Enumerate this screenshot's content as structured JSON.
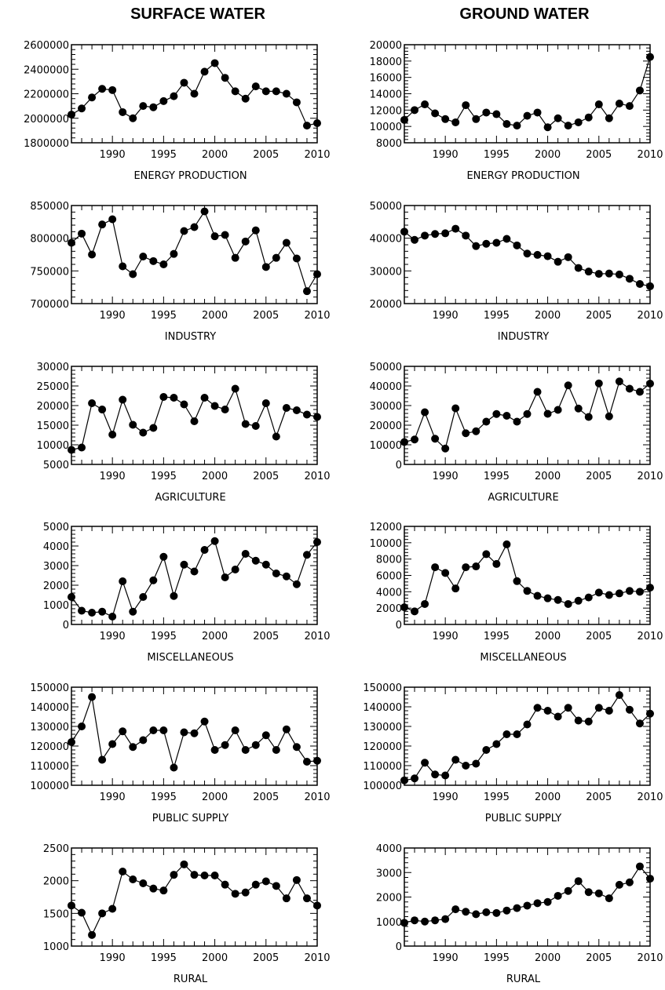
{
  "columns": [
    "SURFACE WATER",
    "GROUND WATER"
  ],
  "chart_data": [
    {
      "type": "line",
      "column": "SURFACE WATER",
      "xlabel": "ENERGY PRODUCTION",
      "xlim": [
        1986,
        2010
      ],
      "ylim": [
        1800000,
        2600000
      ],
      "yticks": [
        1800000,
        2000000,
        2200000,
        2400000,
        2600000
      ],
      "x": [
        1986,
        1987,
        1988,
        1989,
        1990,
        1991,
        1992,
        1993,
        1994,
        1995,
        1996,
        1997,
        1998,
        1999,
        2000,
        2001,
        2002,
        2003,
        2004,
        2005,
        2006,
        2007,
        2008,
        2009,
        2010
      ],
      "values": [
        2030000,
        2080000,
        2170000,
        2240000,
        2230000,
        2050000,
        2000000,
        2100000,
        2090000,
        2140000,
        2180000,
        2290000,
        2200000,
        2380000,
        2450000,
        2330000,
        2220000,
        2160000,
        2260000,
        2220000,
        2220000,
        2200000,
        2130000,
        1940000,
        1960000
      ]
    },
    {
      "type": "line",
      "column": "GROUND WATER",
      "xlabel": "ENERGY PRODUCTION",
      "xlim": [
        1986,
        2010
      ],
      "ylim": [
        8000,
        20000
      ],
      "yticks": [
        8000,
        10000,
        12000,
        14000,
        16000,
        18000,
        20000
      ],
      "x": [
        1986,
        1987,
        1988,
        1989,
        1990,
        1991,
        1992,
        1993,
        1994,
        1995,
        1996,
        1997,
        1998,
        1999,
        2000,
        2001,
        2002,
        2003,
        2004,
        2005,
        2006,
        2007,
        2008,
        2009,
        2010
      ],
      "values": [
        10800,
        12000,
        12700,
        11600,
        10900,
        10500,
        12600,
        10900,
        11700,
        11500,
        10300,
        10100,
        11300,
        11700,
        9900,
        11000,
        10100,
        10500,
        11100,
        12700,
        11000,
        12800,
        12500,
        14400,
        18500
      ]
    },
    {
      "type": "line",
      "column": "SURFACE WATER",
      "xlabel": "INDUSTRY",
      "xlim": [
        1986,
        2010
      ],
      "ylim": [
        700000,
        850000
      ],
      "yticks": [
        700000,
        750000,
        800000,
        850000
      ],
      "x": [
        1986,
        1987,
        1988,
        1989,
        1990,
        1991,
        1992,
        1993,
        1994,
        1995,
        1996,
        1997,
        1998,
        1999,
        2000,
        2001,
        2002,
        2003,
        2004,
        2005,
        2006,
        2007,
        2008,
        2009,
        2010
      ],
      "values": [
        793000,
        807000,
        775000,
        821000,
        829000,
        757000,
        745000,
        772000,
        765000,
        760000,
        776000,
        811000,
        817000,
        841000,
        803000,
        805000,
        770000,
        795000,
        812000,
        756000,
        770000,
        793000,
        769000,
        719000,
        745000
      ]
    },
    {
      "type": "line",
      "column": "GROUND WATER",
      "xlabel": "INDUSTRY",
      "xlim": [
        1986,
        2010
      ],
      "ylim": [
        20000,
        50000
      ],
      "yticks": [
        20000,
        30000,
        40000,
        50000
      ],
      "x": [
        1986,
        1987,
        1988,
        1989,
        1990,
        1991,
        1992,
        1993,
        1994,
        1995,
        1996,
        1997,
        1998,
        1999,
        2000,
        2001,
        2002,
        2003,
        2004,
        2005,
        2006,
        2007,
        2008,
        2009,
        2010
      ],
      "values": [
        42000,
        39500,
        40800,
        41300,
        41500,
        42900,
        40800,
        37600,
        38300,
        38600,
        39800,
        37800,
        35300,
        34900,
        34500,
        32800,
        34200,
        30900,
        29800,
        29100,
        29200,
        28900,
        27600,
        26000,
        25300
      ]
    },
    {
      "type": "line",
      "column": "SURFACE WATER",
      "xlabel": "AGRICULTURE",
      "xlim": [
        1986,
        2010
      ],
      "ylim": [
        5000,
        30000
      ],
      "yticks": [
        5000,
        10000,
        15000,
        20000,
        25000,
        30000
      ],
      "x": [
        1986,
        1987,
        1988,
        1989,
        1990,
        1991,
        1992,
        1993,
        1994,
        1995,
        1996,
        1997,
        1998,
        1999,
        2000,
        2001,
        2002,
        2003,
        2004,
        2005,
        2006,
        2007,
        2008,
        2009,
        2010
      ],
      "values": [
        8700,
        9300,
        20600,
        19000,
        12600,
        21500,
        15100,
        13100,
        14300,
        22200,
        22000,
        20300,
        16000,
        22000,
        19900,
        19000,
        24300,
        15300,
        14800,
        20600,
        12100,
        19400,
        18800,
        17700,
        17100
      ]
    },
    {
      "type": "line",
      "column": "GROUND WATER",
      "xlabel": "AGRICULTURE",
      "xlim": [
        1986,
        2010
      ],
      "ylim": [
        0,
        50000
      ],
      "yticks": [
        0,
        10000,
        20000,
        30000,
        40000,
        50000
      ],
      "x": [
        1986,
        1987,
        1988,
        1989,
        1990,
        1991,
        1992,
        1993,
        1994,
        1995,
        1996,
        1997,
        1998,
        1999,
        2000,
        2001,
        2002,
        2003,
        2004,
        2005,
        2006,
        2007,
        2008,
        2009,
        2010
      ],
      "values": [
        11400,
        12700,
        26600,
        13100,
        8100,
        28600,
        15900,
        16900,
        21800,
        25700,
        24800,
        21800,
        25700,
        37000,
        25800,
        27800,
        40300,
        28500,
        24200,
        41300,
        24500,
        42300,
        38600,
        37000,
        41200
      ]
    },
    {
      "type": "line",
      "column": "SURFACE WATER",
      "xlabel": "MISCELLANEOUS",
      "xlim": [
        1986,
        2010
      ],
      "ylim": [
        0,
        5000
      ],
      "yticks": [
        0,
        1000,
        2000,
        3000,
        4000,
        5000
      ],
      "x": [
        1986,
        1987,
        1988,
        1989,
        1990,
        1991,
        1992,
        1993,
        1994,
        1995,
        1996,
        1997,
        1998,
        1999,
        2000,
        2001,
        2002,
        2003,
        2004,
        2005,
        2006,
        2007,
        2008,
        2009,
        2010
      ],
      "values": [
        1400,
        700,
        600,
        650,
        400,
        2200,
        650,
        1400,
        2250,
        3450,
        1450,
        3050,
        2700,
        3800,
        4250,
        2400,
        2800,
        3600,
        3250,
        3050,
        2600,
        2450,
        2050,
        3550,
        4200
      ]
    },
    {
      "type": "line",
      "column": "GROUND WATER",
      "xlabel": "MISCELLANEOUS",
      "xlim": [
        1986,
        2010
      ],
      "ylim": [
        0,
        12000
      ],
      "yticks": [
        0,
        2000,
        4000,
        6000,
        8000,
        10000,
        12000
      ],
      "x": [
        1986,
        1987,
        1988,
        1989,
        1990,
        1991,
        1992,
        1993,
        1994,
        1995,
        1996,
        1997,
        1998,
        1999,
        2000,
        2001,
        2002,
        2003,
        2004,
        2005,
        2006,
        2007,
        2008,
        2009,
        2010
      ],
      "values": [
        2100,
        1600,
        2500,
        7000,
        6300,
        4400,
        7000,
        7100,
        8600,
        7400,
        9800,
        5300,
        4100,
        3500,
        3200,
        3000,
        2500,
        2900,
        3300,
        3900,
        3600,
        3800,
        4100,
        4000,
        4500
      ]
    },
    {
      "type": "line",
      "column": "SURFACE WATER",
      "xlabel": "PUBLIC SUPPLY",
      "xlim": [
        1986,
        2010
      ],
      "ylim": [
        100000,
        150000
      ],
      "yticks": [
        100000,
        110000,
        120000,
        130000,
        140000,
        150000
      ],
      "x": [
        1986,
        1987,
        1988,
        1989,
        1990,
        1991,
        1992,
        1993,
        1994,
        1995,
        1996,
        1997,
        1998,
        1999,
        2000,
        2001,
        2002,
        2003,
        2004,
        2005,
        2006,
        2007,
        2008,
        2009,
        2010
      ],
      "values": [
        122000,
        130000,
        145000,
        113000,
        121000,
        127500,
        119500,
        123000,
        128000,
        128000,
        109000,
        127000,
        126500,
        132500,
        118000,
        120500,
        128000,
        118000,
        120500,
        125500,
        118000,
        128500,
        119500,
        112000,
        112500
      ]
    },
    {
      "type": "line",
      "column": "GROUND WATER",
      "xlabel": "PUBLIC SUPPLY",
      "xlim": [
        1986,
        2010
      ],
      "ylim": [
        100000,
        150000
      ],
      "yticks": [
        100000,
        110000,
        120000,
        130000,
        140000,
        150000
      ],
      "x": [
        1986,
        1987,
        1988,
        1989,
        1990,
        1991,
        1992,
        1993,
        1994,
        1995,
        1996,
        1997,
        1998,
        1999,
        2000,
        2001,
        2002,
        2003,
        2004,
        2005,
        2006,
        2007,
        2008,
        2009,
        2010
      ],
      "values": [
        102500,
        103500,
        111500,
        105500,
        105000,
        113000,
        110000,
        111000,
        118000,
        121000,
        126000,
        126000,
        131000,
        139500,
        138000,
        135000,
        139500,
        133000,
        132500,
        139500,
        138000,
        146000,
        138500,
        131500,
        136500
      ]
    },
    {
      "type": "line",
      "column": "SURFACE WATER",
      "xlabel": "RURAL",
      "xlim": [
        1986,
        2010
      ],
      "ylim": [
        1000,
        2500
      ],
      "yticks": [
        1000,
        1500,
        2000,
        2500
      ],
      "x": [
        1986,
        1987,
        1988,
        1989,
        1990,
        1991,
        1992,
        1993,
        1994,
        1995,
        1996,
        1997,
        1998,
        1999,
        2000,
        2001,
        2002,
        2003,
        2004,
        2005,
        2006,
        2007,
        2008,
        2009,
        2010
      ],
      "values": [
        1620,
        1510,
        1170,
        1500,
        1570,
        2140,
        2020,
        1960,
        1880,
        1850,
        2090,
        2250,
        2090,
        2080,
        2080,
        1940,
        1800,
        1820,
        1940,
        1990,
        1920,
        1730,
        2010,
        1730,
        1620
      ]
    },
    {
      "type": "line",
      "column": "GROUND WATER",
      "xlabel": "RURAL",
      "xlim": [
        1986,
        2010
      ],
      "ylim": [
        0,
        4000
      ],
      "yticks": [
        0,
        1000,
        2000,
        3000,
        4000
      ],
      "x": [
        1986,
        1987,
        1988,
        1989,
        1990,
        1991,
        1992,
        1993,
        1994,
        1995,
        1996,
        1997,
        1998,
        1999,
        2000,
        2001,
        2002,
        2003,
        2004,
        2005,
        2006,
        2007,
        2008,
        2009,
        2010
      ],
      "values": [
        950,
        1050,
        1000,
        1050,
        1100,
        1500,
        1400,
        1300,
        1380,
        1350,
        1450,
        1550,
        1650,
        1750,
        1800,
        2050,
        2250,
        2650,
        2200,
        2150,
        1950,
        2500,
        2600,
        3250,
        2750
      ]
    }
  ],
  "xticks": [
    1990,
    1995,
    2000,
    2005,
    2010
  ]
}
